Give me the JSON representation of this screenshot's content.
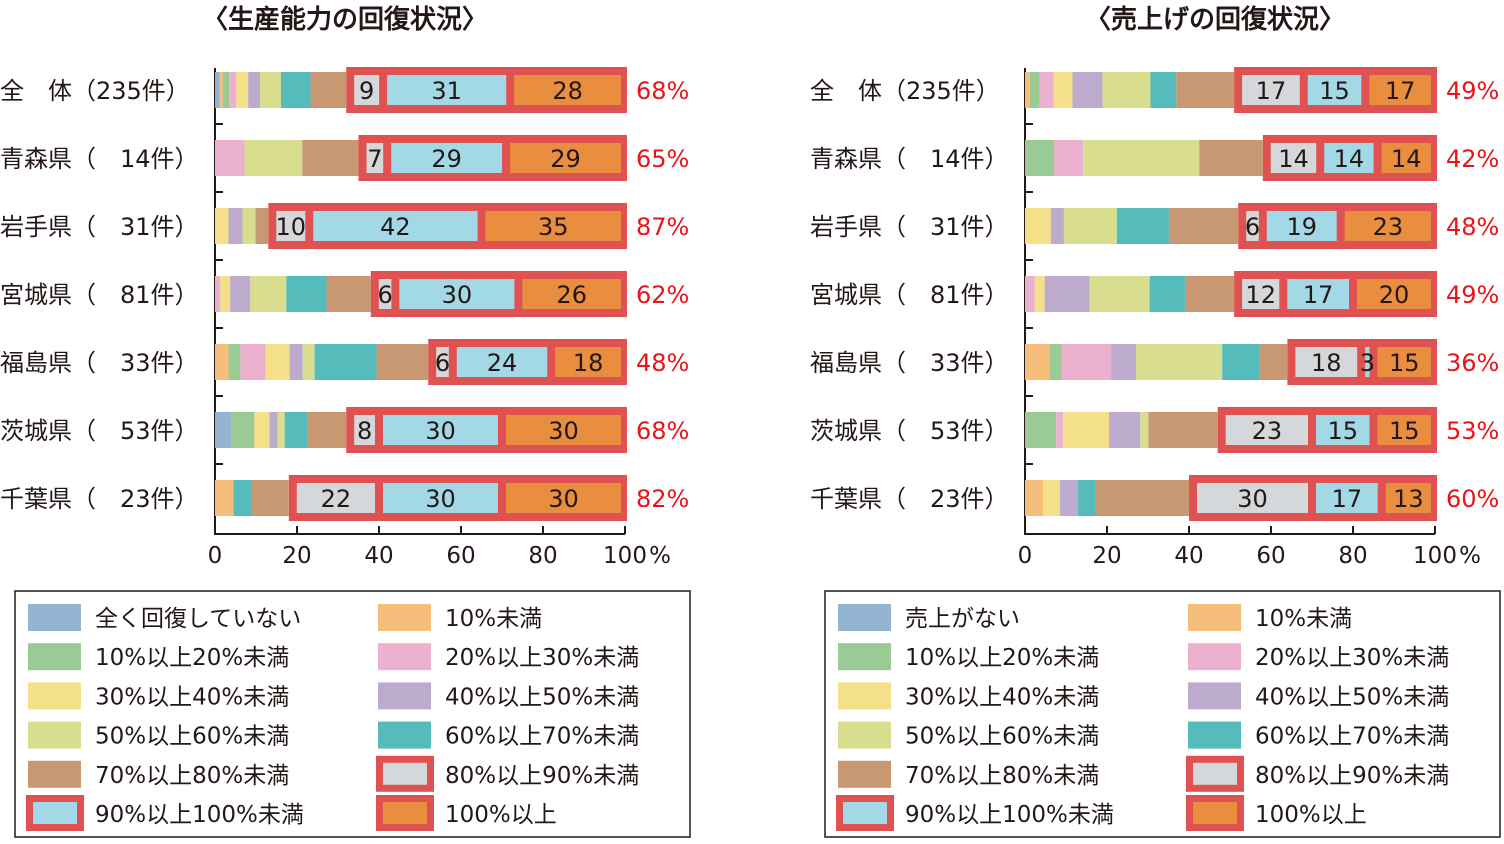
{
  "colors": {
    "segments": [
      "#94b5d2",
      "#f5be7a",
      "#9acb95",
      "#ebb1cf",
      "#f4e088",
      "#bcabcd",
      "#d9de8f",
      "#55bbbb",
      "#c79871",
      "#d4d8da",
      "#a3d9e6",
      "#e98d3f"
    ],
    "highlight_border": "#e05252",
    "percent_text": "#e8141a"
  },
  "chart_data": [
    {
      "type": "bar",
      "orientation": "horizontal",
      "stacked": true,
      "title": "〈生産能力の回復状況〉",
      "categories": [
        "全　体（235件）",
        "青森県（　14件）",
        "岩手県（　31件）",
        "宮城県（　81件）",
        "福島県（　33件）",
        "茨城県（　53件）",
        "千葉県（　23件）"
      ],
      "series_names": [
        "全く回復していない",
        "10%未満",
        "10%以上20%未満",
        "20%以上30%未満",
        "30%以上40%未満",
        "40%以上50%未満",
        "50%以上60%未満",
        "60%以上70%未満",
        "70%以上80%未満",
        "80%以上90%未満",
        "90%以上100%未満",
        "100%以上"
      ],
      "values": [
        [
          1.1,
          0.8,
          1.6,
          1.7,
          2.9,
          2.9,
          5.1,
          7.2,
          8.7,
          9,
          31,
          28
        ],
        [
          0,
          0,
          0,
          7.2,
          0,
          0,
          14.1,
          0,
          13.7,
          7,
          29,
          29
        ],
        [
          0,
          0,
          0,
          0,
          3.3,
          3.4,
          3.2,
          0,
          3.1,
          10,
          42,
          35
        ],
        [
          0,
          0,
          0,
          1.3,
          2.4,
          4.9,
          8.8,
          9.8,
          10.8,
          6,
          30,
          26
        ],
        [
          0,
          3.3,
          2.9,
          6.1,
          5.9,
          3.2,
          2.9,
          15.1,
          12.6,
          6,
          24,
          18
        ],
        [
          4.0,
          0,
          5.6,
          0,
          3.7,
          2.0,
          1.7,
          5.6,
          9.4,
          8,
          30,
          30
        ],
        [
          0,
          4.5,
          0,
          0,
          0,
          0,
          0,
          4.4,
          9.1,
          22,
          30,
          30
        ]
      ],
      "labels": [
        [
          "9",
          "31",
          "28"
        ],
        [
          "7",
          "29",
          "29"
        ],
        [
          "10",
          "42",
          "35"
        ],
        [
          "6",
          "30",
          "26"
        ],
        [
          "6",
          "24",
          "18"
        ],
        [
          "8",
          "30",
          "30"
        ],
        [
          "22",
          "30",
          "30"
        ]
      ],
      "totals": [
        "68%",
        "65%",
        "87%",
        "62%",
        "48%",
        "68%",
        "82%"
      ],
      "xlim": [
        0,
        100
      ],
      "xticks": [
        "0",
        "20",
        "40",
        "60",
        "80",
        "100"
      ],
      "xunit": "%",
      "legend_placement": "bottom"
    },
    {
      "type": "bar",
      "orientation": "horizontal",
      "stacked": true,
      "title": "〈売上げの回復状況〉",
      "categories": [
        "全　体（235件）",
        "青森県（　14件）",
        "岩手県（　31件）",
        "宮城県（　81件）",
        "福島県（　33件）",
        "茨城県（　53件）",
        "千葉県（　23件）"
      ],
      "series_names": [
        "売上がない",
        "10%未満",
        "10%以上20%未満",
        "20%以上30%未満",
        "30%以上40%未満",
        "40%以上50%未満",
        "50%以上60%未満",
        "60%以上70%未満",
        "70%以上80%未満",
        "80%以上90%未満",
        "90%以上100%未満",
        "100%以上"
      ],
      "values": [
        [
          0,
          1.2,
          2.4,
          3.4,
          4.6,
          7.3,
          11.7,
          6.3,
          14.1,
          17,
          15,
          17
        ],
        [
          0,
          0,
          7.1,
          7.1,
          0,
          0,
          28.3,
          0,
          15.5,
          14,
          14,
          14
        ],
        [
          0,
          0,
          0,
          0,
          6.3,
          3.2,
          12.9,
          12.7,
          16.9,
          6,
          19,
          23
        ],
        [
          0,
          0,
          0,
          2.4,
          2.4,
          11.0,
          14.6,
          8.7,
          11.9,
          12,
          17,
          20
        ],
        [
          0,
          6.1,
          2.9,
          12.0,
          0,
          6.1,
          21.0,
          9.0,
          6.9,
          18,
          3,
          15
        ],
        [
          0,
          0,
          7.6,
          1.7,
          11.2,
          7.6,
          2.0,
          0,
          16.9,
          23,
          15,
          15
        ],
        [
          0,
          4.4,
          0,
          0,
          4.1,
          4.4,
          0,
          4.4,
          22.7,
          30,
          17,
          13
        ]
      ],
      "labels": [
        [
          "17",
          "15",
          "17"
        ],
        [
          "14",
          "14",
          "14"
        ],
        [
          "6",
          "19",
          "23"
        ],
        [
          "12",
          "17",
          "20"
        ],
        [
          "18",
          "3",
          "15"
        ],
        [
          "23",
          "15",
          "15"
        ],
        [
          "30",
          "17",
          "13"
        ]
      ],
      "totals": [
        "49%",
        "42%",
        "48%",
        "49%",
        "36%",
        "53%",
        "60%"
      ],
      "xlim": [
        0,
        100
      ],
      "xticks": [
        "0",
        "20",
        "40",
        "60",
        "80",
        "100"
      ],
      "xunit": "%",
      "legend_placement": "bottom"
    }
  ]
}
